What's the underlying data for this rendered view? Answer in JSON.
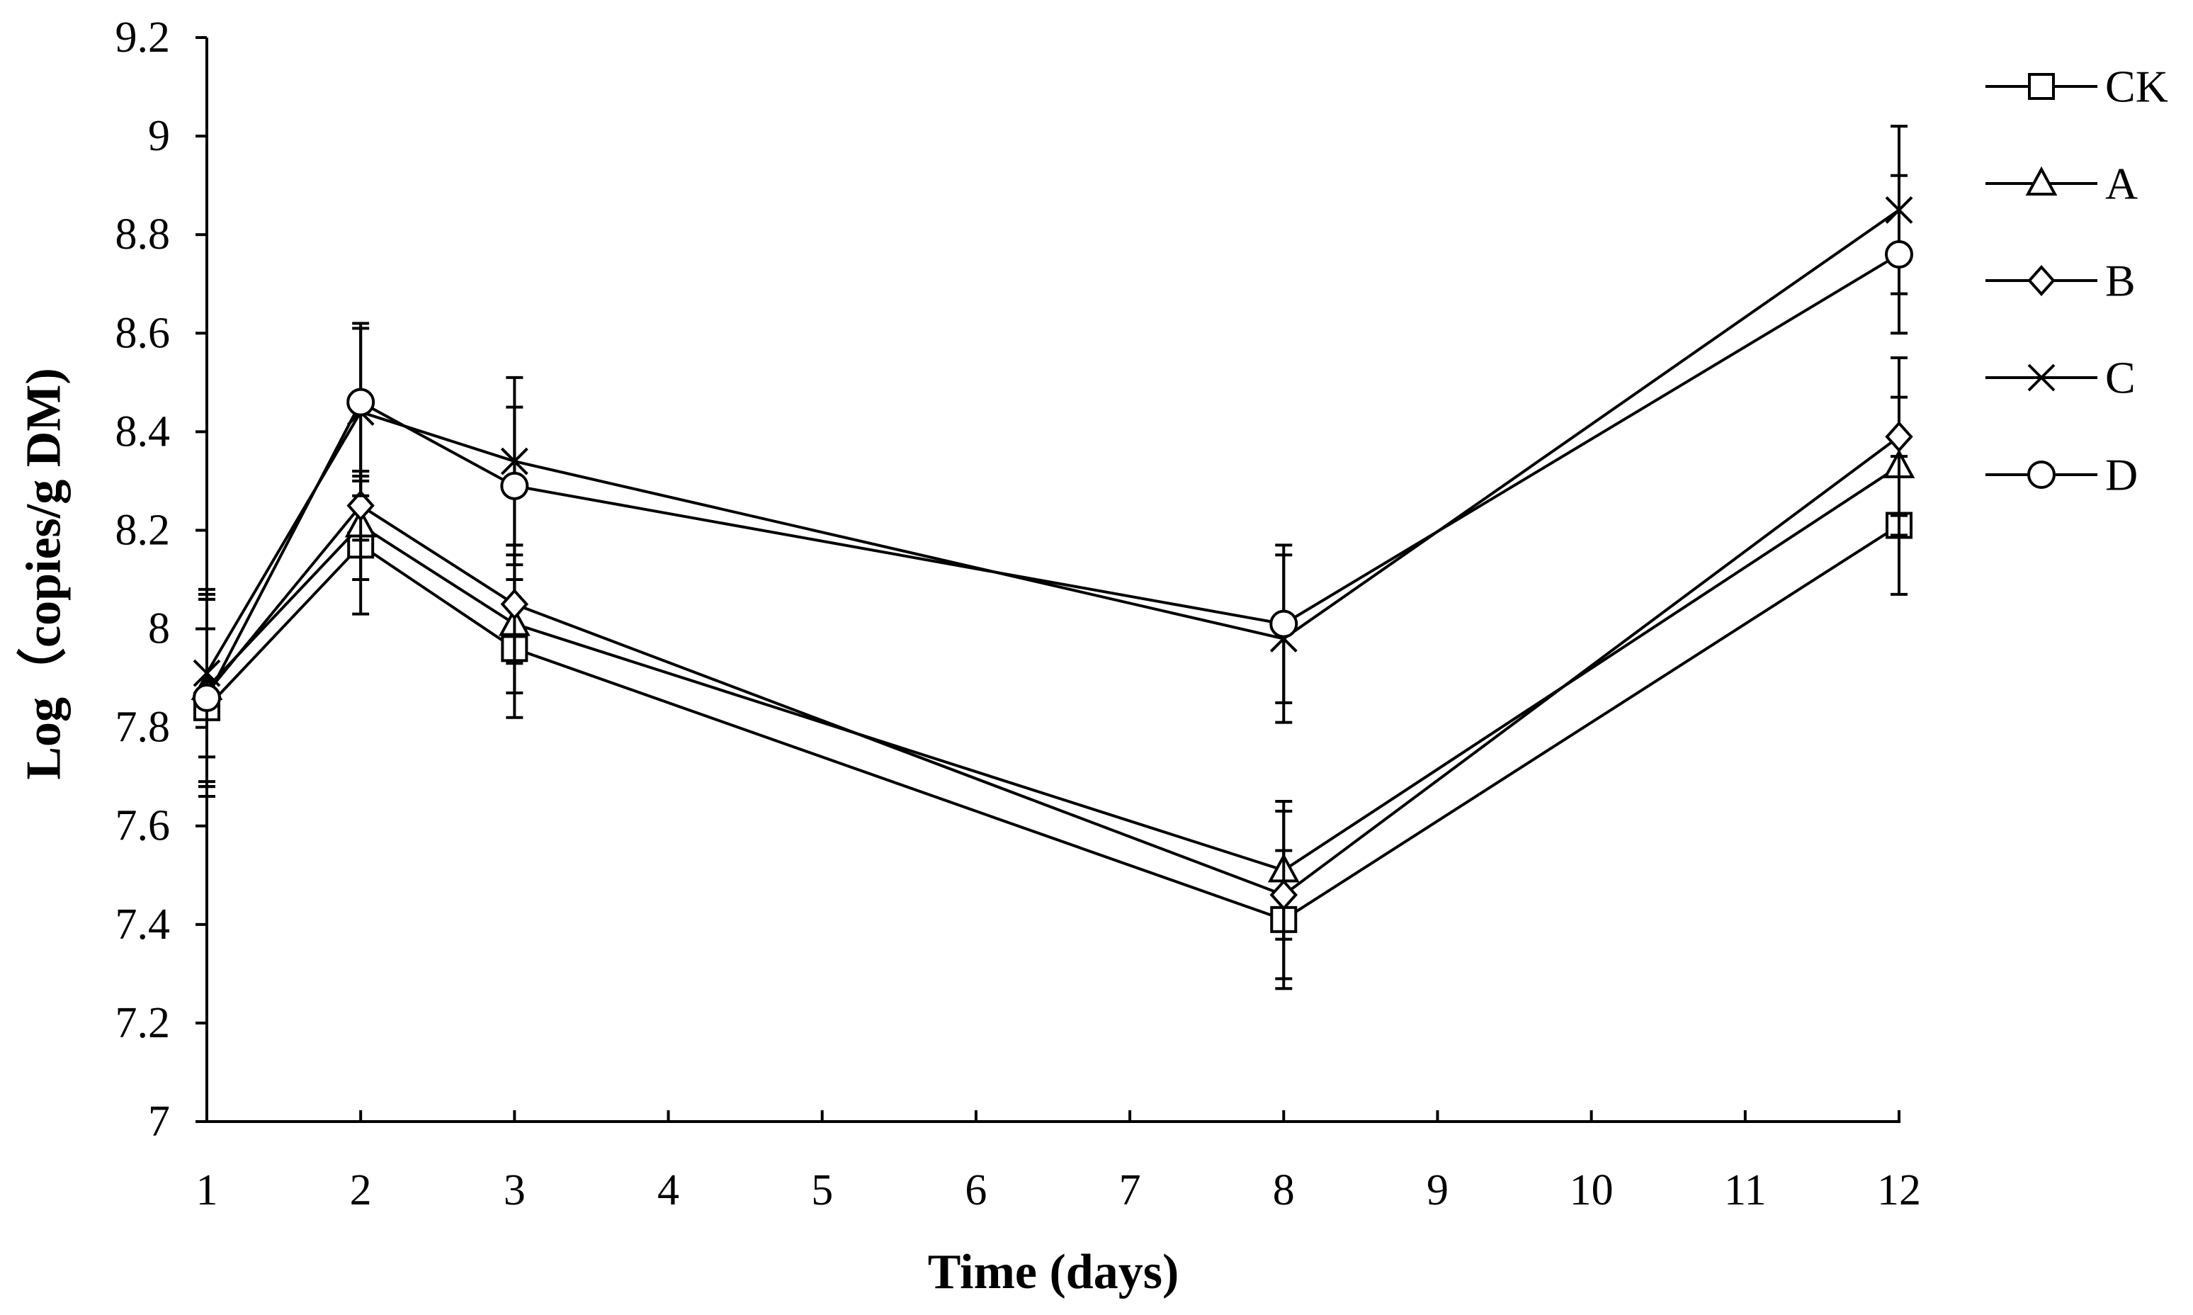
{
  "chart_data": {
    "type": "line",
    "title": "",
    "xlabel": "Time (days)",
    "ylabel": "Log（copies/g DM)",
    "xlim": [
      1,
      12
    ],
    "ylim": [
      7,
      9.2
    ],
    "xticks": [
      "1",
      "2",
      "3",
      "4",
      "5",
      "6",
      "7",
      "8",
      "9",
      "10",
      "11",
      "12"
    ],
    "yticks": [
      "7",
      "7.2",
      "7.4",
      "7.6",
      "7.8",
      "8",
      "8.2",
      "8.4",
      "8.6",
      "8.8",
      "9",
      "9.2"
    ],
    "grid": false,
    "legend_position": "right",
    "x": [
      1,
      2,
      3,
      8,
      12
    ],
    "series": [
      {
        "name": "CK",
        "marker": "square",
        "values": [
          7.84,
          8.17,
          7.96,
          7.41,
          8.21
        ],
        "errors": [
          0.16,
          0.14,
          0.14,
          0.14,
          0.14
        ]
      },
      {
        "name": "A",
        "marker": "triangle",
        "values": [
          7.88,
          8.21,
          8.01,
          7.51,
          8.33
        ],
        "errors": [
          0.19,
          0.11,
          0.14,
          0.14,
          0.14
        ]
      },
      {
        "name": "B",
        "marker": "diamond",
        "values": [
          7.87,
          8.25,
          8.05,
          7.46,
          8.39
        ],
        "errors": [
          0.19,
          0.07,
          0.12,
          0.17,
          0.16
        ]
      },
      {
        "name": "C",
        "marker": "x",
        "values": [
          7.91,
          8.44,
          8.34,
          7.98,
          8.85
        ],
        "errors": [
          0.17,
          0.17,
          0.17,
          0.17,
          0.17
        ]
      },
      {
        "name": "D",
        "marker": "circle",
        "values": [
          7.86,
          8.46,
          8.29,
          8.01,
          8.76
        ],
        "errors": [
          0.2,
          0.16,
          0.16,
          0.16,
          0.16
        ]
      }
    ]
  }
}
